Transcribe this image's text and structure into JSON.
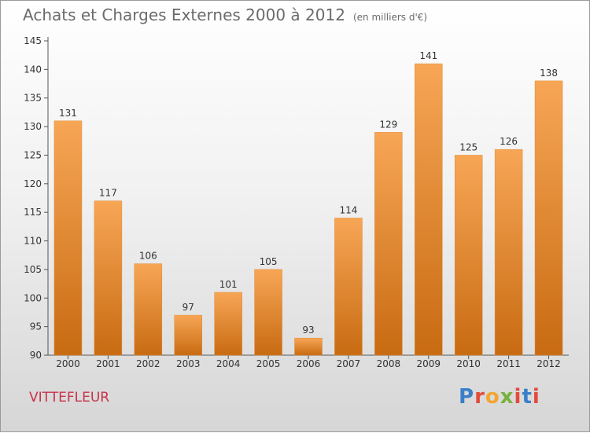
{
  "title": "Achats et Charges Externes 2000 à 2012",
  "unit": "(en milliers d'€)",
  "commune": "VITTEFLEUR",
  "logo": {
    "text": "Proxiti",
    "colors": [
      "#3a7fc7",
      "#e24a3b",
      "#f2a531",
      "#78b13f",
      "#e24a3b",
      "#3a7fc7",
      "#e24a3b"
    ]
  },
  "colors": {
    "bar_light": "#f7a656",
    "bar_dark": "#c86b12",
    "label": "#333333",
    "axis": "#555555"
  },
  "chart_data": {
    "type": "bar",
    "title": "Achats et Charges Externes 2000 à 2012",
    "xlabel": "",
    "ylabel": "",
    "ylim": [
      90,
      145
    ],
    "yticks": [
      90,
      95,
      100,
      105,
      110,
      115,
      120,
      125,
      130,
      135,
      140,
      145
    ],
    "grid": false,
    "categories": [
      "2000",
      "2001",
      "2002",
      "2003",
      "2004",
      "2005",
      "2006",
      "2007",
      "2008",
      "2009",
      "2010",
      "2011",
      "2012"
    ],
    "values": [
      131,
      117,
      106,
      97,
      101,
      105,
      93,
      114,
      129,
      141,
      125,
      126,
      138
    ]
  }
}
